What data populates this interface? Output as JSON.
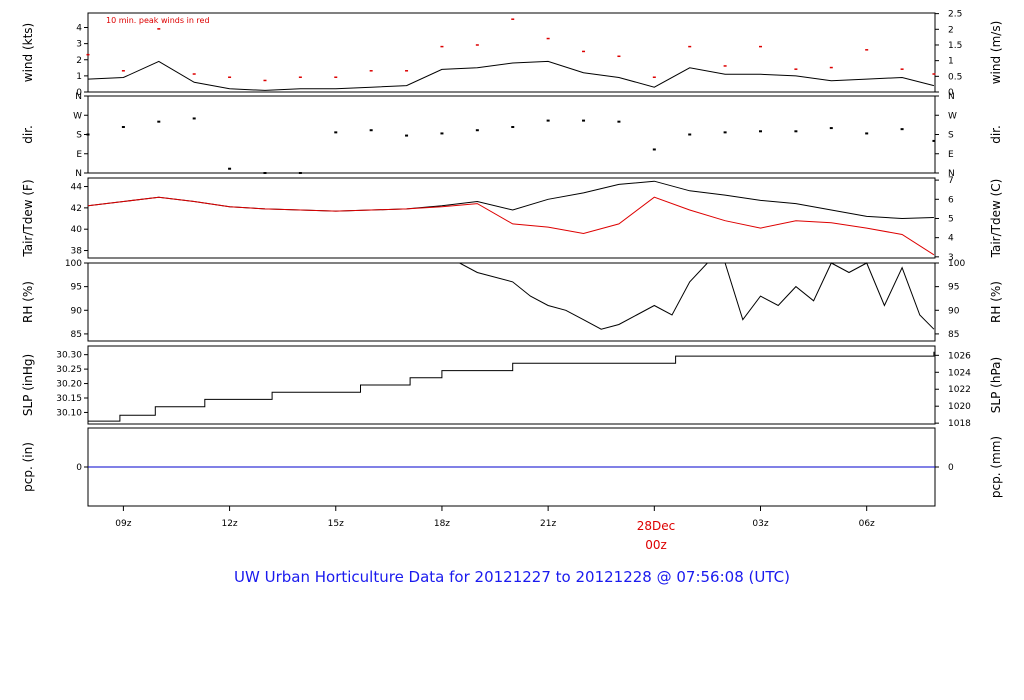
{
  "title": "UW Urban Horticulture Data for 20121227  to  20121228 @ 07:56:08  (UTC)",
  "day_label": [
    "28Dec",
    "00z"
  ],
  "x_ticks": [
    "09z",
    "12z",
    "15z",
    "18z",
    "21z",
    "03z",
    "06z"
  ],
  "colors": {
    "primary": "#000000",
    "accent": "#dd0000",
    "precip": "#0000cc",
    "title": "#1a1aee"
  },
  "chart_data": [
    {
      "id": "wind",
      "type": "line",
      "ylabel_left": "wind (kts)",
      "ylabel_right": "wind (m/s)",
      "ticks_left": [
        "0",
        "1",
        "2",
        "3",
        "4"
      ],
      "ticks_right": [
        "0",
        "0.5",
        "1",
        "1.5",
        "2",
        "2.5"
      ],
      "ylim_left": [
        0,
        4.9
      ],
      "ylim_right": [
        0,
        2.52
      ],
      "annotation": "10 min. peak winds in red",
      "x_range_hours": [
        8.0,
        31.93
      ],
      "series": [
        {
          "role": "speed",
          "color": "#000000",
          "x": [
            8.0,
            9.0,
            10.0,
            11.0,
            12.0,
            13.0,
            14.0,
            15.0,
            16.0,
            17.0,
            18.0,
            19.0,
            20.0,
            21.0,
            22.0,
            23.0,
            24.0,
            25.0,
            26.0,
            27.0,
            28.0,
            29.0,
            30.0,
            31.0,
            31.9
          ],
          "y": [
            0.8,
            0.9,
            1.9,
            0.6,
            0.2,
            0.1,
            0.2,
            0.2,
            0.3,
            0.4,
            1.4,
            1.5,
            1.8,
            1.9,
            1.2,
            0.9,
            0.3,
            1.5,
            1.1,
            1.1,
            1.0,
            0.7,
            0.8,
            0.9,
            0.4
          ]
        },
        {
          "role": "peak",
          "color": "#dd0000",
          "x": [
            8.0,
            9.0,
            10.0,
            11.0,
            12.0,
            13.0,
            14.0,
            15.0,
            16.0,
            17.0,
            18.0,
            19.0,
            20.0,
            21.0,
            22.0,
            23.0,
            24.0,
            25.0,
            26.0,
            27.0,
            28.0,
            29.0,
            30.0,
            31.0,
            31.9
          ],
          "y": [
            2.3,
            1.3,
            3.9,
            1.1,
            0.9,
            0.7,
            0.9,
            0.9,
            1.3,
            1.3,
            2.8,
            2.9,
            4.5,
            3.3,
            2.5,
            2.2,
            0.9,
            2.8,
            1.6,
            2.8,
            1.4,
            1.5,
            2.6,
            1.4,
            1.1
          ]
        }
      ]
    },
    {
      "id": "dir",
      "type": "scatter",
      "ylabel_left": "dir.",
      "ylabel_right": "dir.",
      "ticks_left": [
        "N",
        "E",
        "S",
        "W",
        "N"
      ],
      "ticks_right": [
        "N",
        "E",
        "S",
        "W",
        "N"
      ],
      "ylim_left": [
        0,
        360
      ],
      "ylim_right": [
        0,
        360
      ],
      "x_range_hours": [
        8.0,
        31.93
      ],
      "x": [
        8.0,
        9.0,
        10.0,
        11.0,
        12.0,
        13.0,
        14.0,
        15.0,
        16.0,
        17.0,
        18.0,
        19.0,
        20.0,
        21.0,
        22.0,
        23.0,
        24.0,
        25.0,
        26.0,
        27.0,
        28.0,
        29.0,
        30.0,
        31.0,
        31.9
      ],
      "y": [
        180,
        215,
        240,
        255,
        20,
        0,
        0,
        190,
        200,
        175,
        185,
        200,
        215,
        245,
        245,
        240,
        110,
        180,
        190,
        195,
        195,
        210,
        185,
        205,
        150
      ]
    },
    {
      "id": "temp",
      "type": "line",
      "ylabel_left": "Tair/Tdew (F)",
      "ylabel_right": "Tair/Tdew (C)",
      "ticks_left": [
        "38",
        "40",
        "42",
        "44"
      ],
      "ticks_right": [
        "3",
        "4",
        "5",
        "6",
        "7"
      ],
      "ylim_left": [
        37.3,
        44.8
      ],
      "ylim_right": [
        2.94,
        7.11
      ],
      "x_range_hours": [
        8.0,
        31.93
      ],
      "series": [
        {
          "role": "air",
          "color": "#000000",
          "x": [
            8.0,
            9.0,
            10.0,
            11.0,
            12.0,
            13.0,
            14.0,
            15.0,
            16.0,
            17.0,
            18.0,
            19.0,
            20.0,
            21.0,
            22.0,
            23.0,
            24.0,
            25.0,
            26.0,
            27.0,
            28.0,
            29.0,
            30.0,
            31.0,
            31.9
          ],
          "y": [
            42.2,
            42.6,
            43.0,
            42.6,
            42.1,
            41.9,
            41.8,
            41.7,
            41.8,
            41.9,
            42.2,
            42.6,
            41.8,
            42.8,
            43.4,
            44.2,
            44.5,
            43.6,
            43.2,
            42.7,
            42.4,
            41.8,
            41.2,
            41.0,
            41.1
          ]
        },
        {
          "role": "dew",
          "color": "#dd0000",
          "x": [
            8.0,
            9.0,
            10.0,
            11.0,
            12.0,
            13.0,
            14.0,
            15.0,
            16.0,
            17.0,
            18.0,
            19.0,
            20.0,
            21.0,
            22.0,
            23.0,
            24.0,
            25.0,
            26.0,
            27.0,
            28.0,
            29.0,
            30.0,
            31.0,
            31.9
          ],
          "y": [
            42.2,
            42.6,
            43.0,
            42.6,
            42.1,
            41.9,
            41.8,
            41.7,
            41.8,
            41.9,
            42.1,
            42.4,
            40.5,
            40.2,
            39.6,
            40.5,
            43.0,
            41.8,
            40.8,
            40.1,
            40.8,
            40.6,
            40.1,
            39.5,
            37.6
          ]
        }
      ]
    },
    {
      "id": "rh",
      "type": "line",
      "ylabel_left": "RH (%)",
      "ylabel_right": "RH (%)",
      "ticks_left": [
        "85",
        "90",
        "95",
        "100"
      ],
      "ticks_right": [
        "85",
        "90",
        "95",
        "100"
      ],
      "ylim_left": [
        83.5,
        100
      ],
      "ylim_right": [
        83.5,
        100
      ],
      "x_range_hours": [
        8.0,
        31.93
      ],
      "series": [
        {
          "role": "rh",
          "color": "#000000",
          "x": [
            17.4,
            18.5,
            19.0,
            20.0,
            20.5,
            21.0,
            21.5,
            22.0,
            22.5,
            23.0,
            23.5,
            24.0,
            24.5,
            25.0,
            25.5,
            26.0,
            26.5,
            27.0,
            27.5,
            28.0,
            28.5,
            29.0,
            29.5,
            30.0,
            30.5,
            31.0,
            31.5,
            31.9
          ],
          "y": [
            100,
            100,
            98,
            96,
            93,
            91,
            90,
            88,
            86,
            87,
            89,
            91,
            89,
            96,
            100,
            100,
            88,
            93,
            91,
            95,
            92,
            100,
            98,
            100,
            91,
            99,
            89,
            86
          ]
        }
      ]
    },
    {
      "id": "slp",
      "type": "line",
      "ylabel_left": "SLP (inHg)",
      "ylabel_right": "SLP (hPa)",
      "ticks_left": [
        "30.10",
        "30.15",
        "30.20",
        "30.25",
        "30.30"
      ],
      "ticks_right": [
        "1018",
        "1020",
        "1022",
        "1024",
        "1026"
      ],
      "ylim_left": [
        30.06,
        30.33
      ],
      "ylim_right": [
        1017.9,
        1027.1
      ],
      "x_range_hours": [
        8.0,
        31.93
      ],
      "series": [
        {
          "role": "slp",
          "color": "#000000",
          "x": [
            8.0,
            8.9,
            9.9,
            11.3,
            12.3,
            13.2,
            14.5,
            15.7,
            17.1,
            18.0,
            19.2,
            20.0,
            22.0,
            24.0,
            24.6,
            26.0,
            28.0,
            30.0,
            31.9
          ],
          "y": [
            30.07,
            30.09,
            30.12,
            30.145,
            30.145,
            30.17,
            30.17,
            30.195,
            30.22,
            30.245,
            30.245,
            30.27,
            30.27,
            30.27,
            30.295,
            30.295,
            30.295,
            30.295,
            30.31
          ]
        }
      ]
    },
    {
      "id": "precip",
      "type": "line",
      "ylabel_left": "pcp. (in)",
      "ylabel_right": "pcp. (mm)",
      "ticks_left": [
        "0"
      ],
      "ticks_right": [
        "0"
      ],
      "ylim_left": [
        -1,
        1
      ],
      "ylim_right": [
        -1,
        1
      ],
      "x_range_hours": [
        8.0,
        31.93
      ],
      "series": [
        {
          "role": "precip",
          "color": "#0000cc",
          "x": [
            8.0,
            31.93
          ],
          "y": [
            0,
            0
          ]
        }
      ]
    }
  ]
}
